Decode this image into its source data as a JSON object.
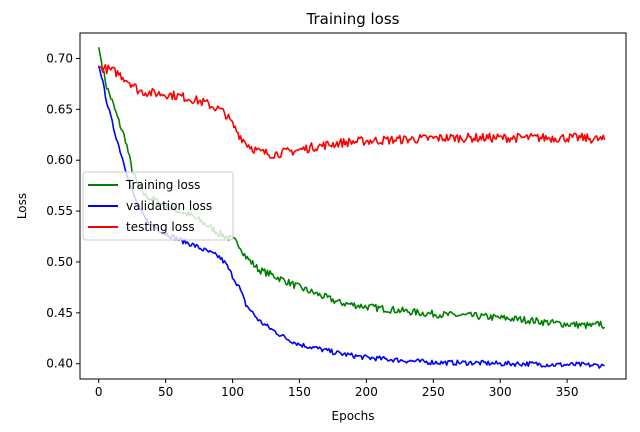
{
  "chart_data": {
    "type": "line",
    "title": "Training loss",
    "xlabel": "Epochs",
    "ylabel": "Loss",
    "xlim": [
      -14,
      394
    ],
    "ylim": [
      0.385,
      0.725
    ],
    "x_ticks": [
      0,
      50,
      100,
      150,
      200,
      250,
      300,
      350
    ],
    "y_ticks": [
      0.4,
      0.45,
      0.5,
      0.55,
      0.6,
      0.65,
      0.7
    ],
    "y_tick_labels": [
      "0.40",
      "0.45",
      "0.50",
      "0.55",
      "0.60",
      "0.65",
      "0.70"
    ],
    "grid": false,
    "legend_position": "center-left",
    "series": [
      {
        "name": "Training loss",
        "color": "#008000",
        "points": [
          [
            0,
            0.711
          ],
          [
            3,
            0.69
          ],
          [
            6,
            0.672
          ],
          [
            10,
            0.658
          ],
          [
            15,
            0.638
          ],
          [
            20,
            0.62
          ],
          [
            25,
            0.59
          ],
          [
            30,
            0.573
          ],
          [
            35,
            0.565
          ],
          [
            40,
            0.562
          ],
          [
            50,
            0.555
          ],
          [
            60,
            0.55
          ],
          [
            70,
            0.545
          ],
          [
            80,
            0.537
          ],
          [
            90,
            0.528
          ],
          [
            100,
            0.522
          ],
          [
            105,
            0.517
          ],
          [
            110,
            0.505
          ],
          [
            120,
            0.492
          ],
          [
            130,
            0.487
          ],
          [
            140,
            0.481
          ],
          [
            150,
            0.475
          ],
          [
            160,
            0.47
          ],
          [
            170,
            0.465
          ],
          [
            180,
            0.46
          ],
          [
            190,
            0.458
          ],
          [
            200,
            0.456
          ],
          [
            220,
            0.453
          ],
          [
            240,
            0.45
          ],
          [
            260,
            0.448
          ],
          [
            280,
            0.447
          ],
          [
            300,
            0.445
          ],
          [
            320,
            0.443
          ],
          [
            340,
            0.44
          ],
          [
            360,
            0.438
          ],
          [
            370,
            0.437
          ],
          [
            375,
            0.44
          ],
          [
            378,
            0.436
          ]
        ]
      },
      {
        "name": "validation loss",
        "color": "#0000ff",
        "points": [
          [
            0,
            0.693
          ],
          [
            3,
            0.676
          ],
          [
            6,
            0.658
          ],
          [
            10,
            0.637
          ],
          [
            15,
            0.614
          ],
          [
            20,
            0.592
          ],
          [
            25,
            0.57
          ],
          [
            30,
            0.552
          ],
          [
            35,
            0.542
          ],
          [
            40,
            0.536
          ],
          [
            50,
            0.528
          ],
          [
            60,
            0.522
          ],
          [
            70,
            0.517
          ],
          [
            80,
            0.511
          ],
          [
            90,
            0.505
          ],
          [
            95,
            0.498
          ],
          [
            100,
            0.486
          ],
          [
            105,
            0.475
          ],
          [
            110,
            0.458
          ],
          [
            120,
            0.442
          ],
          [
            130,
            0.433
          ],
          [
            140,
            0.425
          ],
          [
            150,
            0.419
          ],
          [
            160,
            0.416
          ],
          [
            170,
            0.413
          ],
          [
            180,
            0.41
          ],
          [
            190,
            0.408
          ],
          [
            200,
            0.406
          ],
          [
            220,
            0.404
          ],
          [
            240,
            0.402
          ],
          [
            260,
            0.401
          ],
          [
            280,
            0.401
          ],
          [
            300,
            0.4
          ],
          [
            320,
            0.4
          ],
          [
            340,
            0.399
          ],
          [
            360,
            0.399
          ],
          [
            378,
            0.398
          ]
        ]
      },
      {
        "name": "testing loss",
        "color": "#ff0000",
        "points": [
          [
            0,
            0.692
          ],
          [
            5,
            0.69
          ],
          [
            10,
            0.688
          ],
          [
            15,
            0.685
          ],
          [
            20,
            0.68
          ],
          [
            25,
            0.675
          ],
          [
            30,
            0.668
          ],
          [
            40,
            0.666
          ],
          [
            50,
            0.665
          ],
          [
            60,
            0.663
          ],
          [
            70,
            0.66
          ],
          [
            80,
            0.656
          ],
          [
            90,
            0.65
          ],
          [
            95,
            0.645
          ],
          [
            100,
            0.635
          ],
          [
            105,
            0.625
          ],
          [
            110,
            0.617
          ],
          [
            115,
            0.612
          ],
          [
            120,
            0.608
          ],
          [
            130,
            0.606
          ],
          [
            140,
            0.608
          ],
          [
            150,
            0.61
          ],
          [
            160,
            0.613
          ],
          [
            170,
            0.615
          ],
          [
            180,
            0.617
          ],
          [
            190,
            0.618
          ],
          [
            200,
            0.619
          ],
          [
            220,
            0.62
          ],
          [
            240,
            0.621
          ],
          [
            260,
            0.622
          ],
          [
            280,
            0.622
          ],
          [
            300,
            0.622
          ],
          [
            320,
            0.622
          ],
          [
            340,
            0.622
          ],
          [
            360,
            0.622
          ],
          [
            378,
            0.62
          ]
        ]
      }
    ]
  }
}
